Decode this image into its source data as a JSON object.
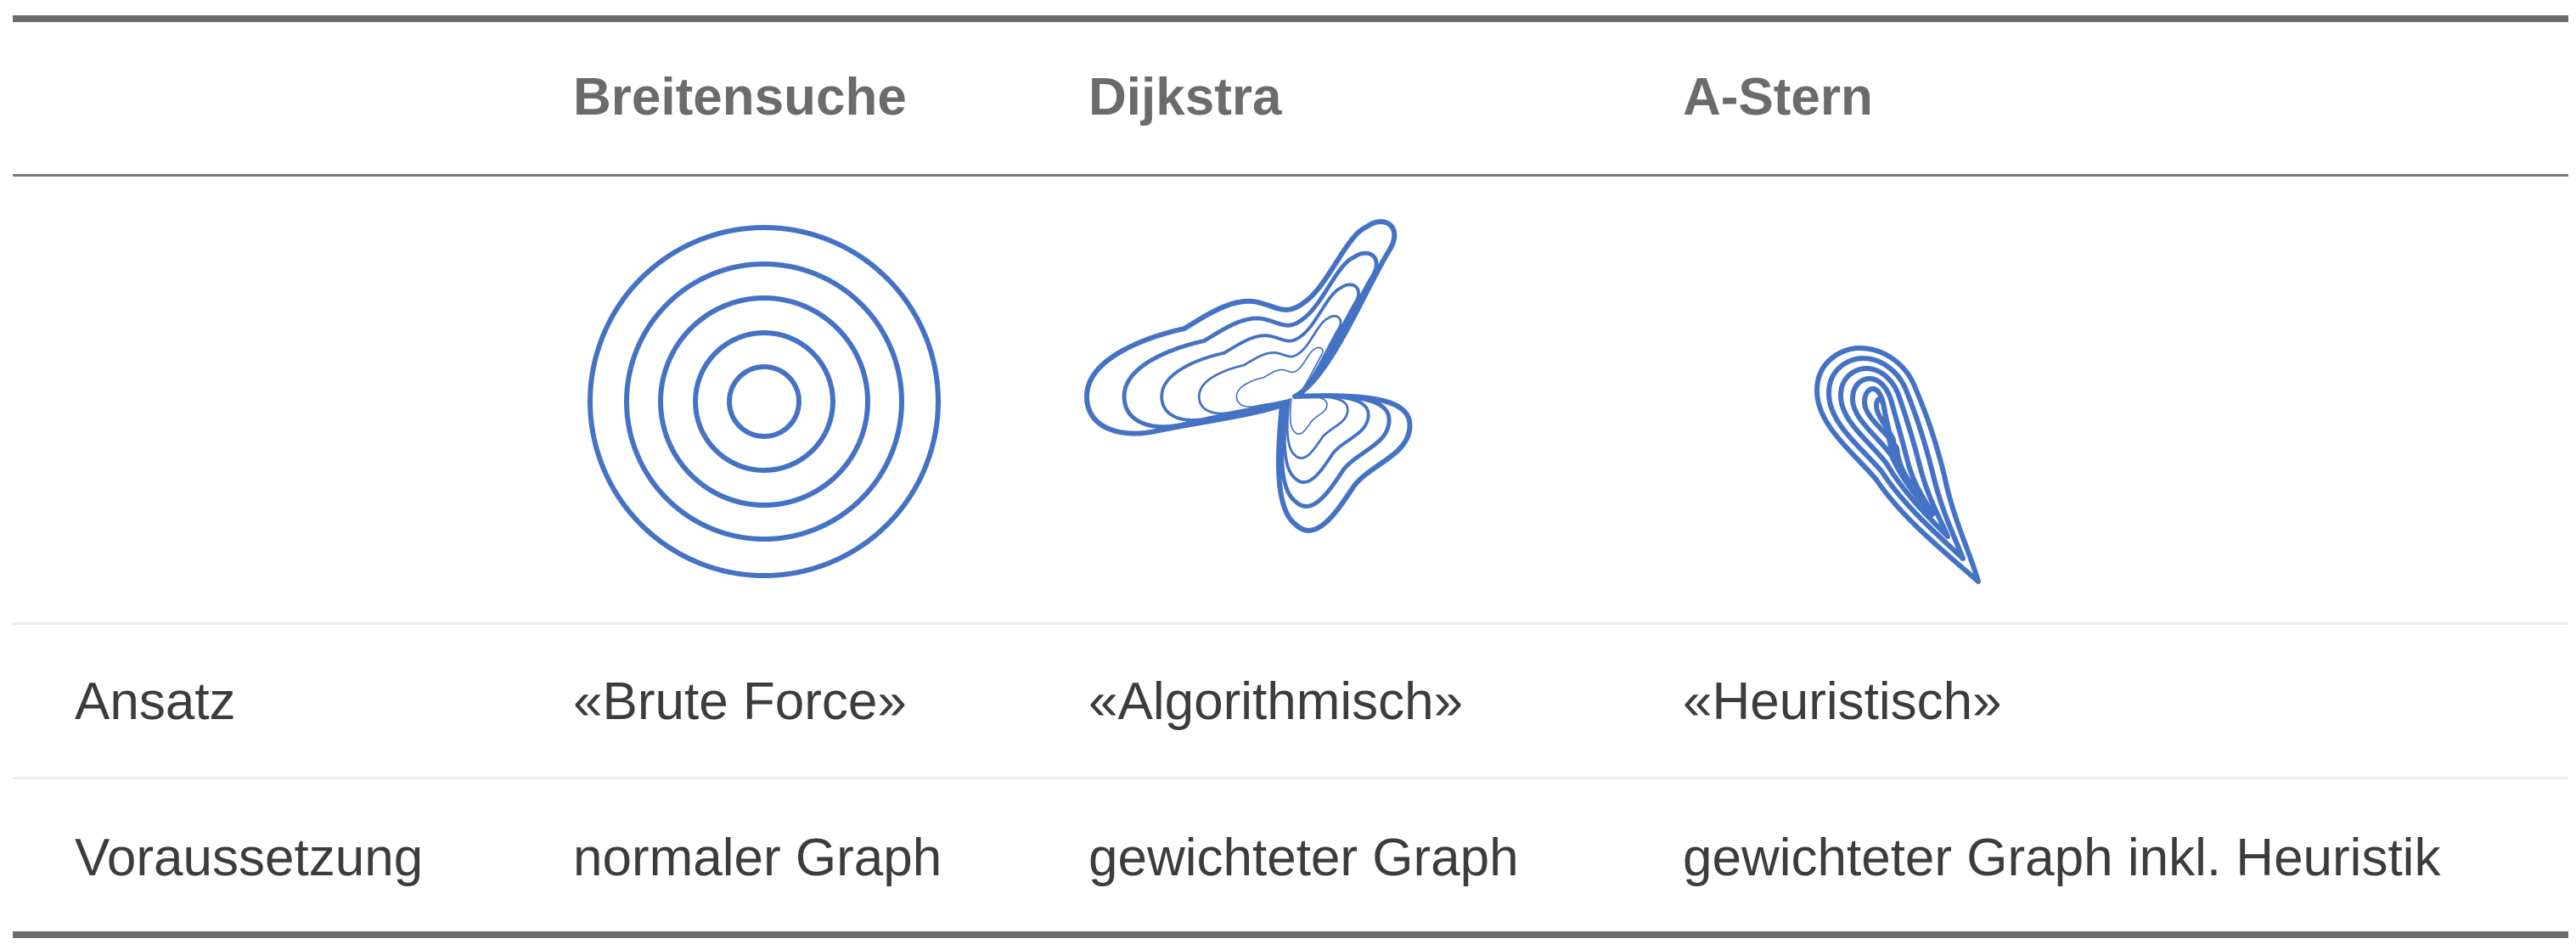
{
  "table": {
    "columns": [
      "",
      "Breitensuche",
      "Dijkstra",
      "A-Stern"
    ],
    "figures": [
      {
        "icon": "concentric-circles-icon",
        "rings": 5
      },
      {
        "icon": "dijkstra-contour-icon",
        "rings": 5
      },
      {
        "icon": "a-star-teardrop-icon",
        "rings": 6
      }
    ],
    "rows": [
      {
        "label": "Ansatz",
        "values": [
          "«Brute Force»",
          "«Algorithmisch»",
          "«Heuristisch»"
        ]
      },
      {
        "label": "Voraussetzung",
        "values": [
          "normaler Graph",
          "gewichteter Graph",
          "gewichteter Graph inkl. Heuristik"
        ]
      }
    ],
    "stroke_color": "#4472c4"
  }
}
